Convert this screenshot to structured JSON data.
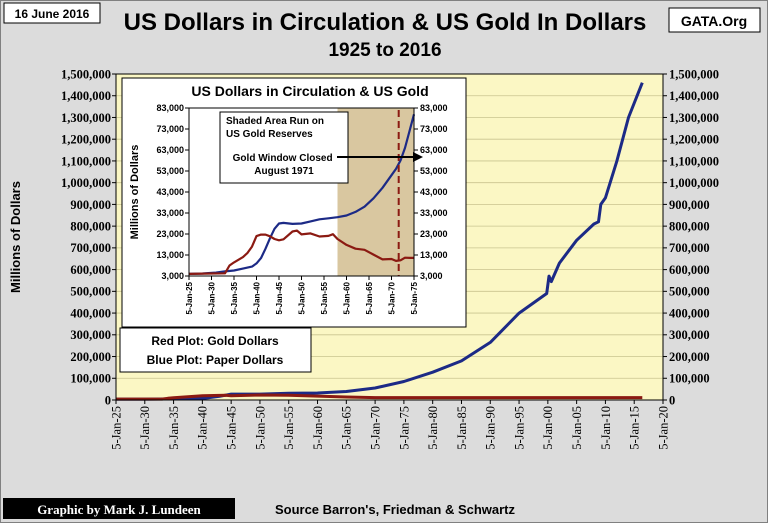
{
  "header": {
    "date_label": "16 June 2016",
    "title": "US Dollars in Circulation & US Gold In Dollars",
    "subtitle": "1925 to 2016",
    "source_badge": "GATA.Org"
  },
  "footer": {
    "credit": "Graphic by Mark J. Lundeen",
    "source": "Source Barron's,  Friedman & Schwartz"
  },
  "legend": {
    "line1": "Red Plot: Gold Dollars",
    "line2": "Blue Plot: Paper Dollars"
  },
  "colors": {
    "plot_bg": "#fbf7c4",
    "inset_shade": "#d9c7a0",
    "paper_dollars": "#1c2a86",
    "gold_dollars": "#8b1a12",
    "window_line": "#8b1a12"
  },
  "chart_data": [
    {
      "type": "line",
      "title": "US Dollars in Circulation & US Gold In Dollars",
      "subtitle": "1925 to 2016",
      "ylabel": "Millions of Dollars",
      "ylim": [
        0,
        1500000
      ],
      "xlim": [
        1925,
        2020
      ],
      "y_ticks": [
        "0",
        "100,000",
        "200,000",
        "300,000",
        "400,000",
        "500,000",
        "600,000",
        "700,000",
        "800,000",
        "900,000",
        "1,000,000",
        "1,100,000",
        "1,200,000",
        "1,300,000",
        "1,400,000",
        "1,500,000"
      ],
      "x_ticks": [
        "5-Jan-25",
        "5-Jan-30",
        "5-Jan-35",
        "5-Jan-40",
        "5-Jan-45",
        "5-Jan-50",
        "5-Jan-55",
        "5-Jan-60",
        "5-Jan-65",
        "5-Jan-70",
        "5-Jan-75",
        "5-Jan-80",
        "5-Jan-85",
        "5-Jan-90",
        "5-Jan-95",
        "5-Jan-00",
        "5-Jan-05",
        "5-Jan-10",
        "5-Jan-15",
        "5-Jan-20"
      ],
      "right_axis": true,
      "grid": "horizontal",
      "series": [
        {
          "name": "Paper Dollars",
          "color": "#1c2a86",
          "x": [
            1925,
            1930,
            1935,
            1940,
            1941,
            1943,
            1945,
            1950,
            1955,
            1960,
            1965,
            1970,
            1975,
            1980,
            1985,
            1990,
            1995,
            1999.8,
            2000.2,
            2000.6,
            2002,
            2005,
            2008,
            2008.8,
            2009.2,
            2010,
            2012,
            2014,
            2016.4
          ],
          "y": [
            4000,
            4000,
            5000,
            8000,
            10000,
            17000,
            27000,
            27000,
            31000,
            32000,
            39000,
            55000,
            85000,
            128000,
            180000,
            265000,
            400000,
            490000,
            570000,
            545000,
            630000,
            735000,
            810000,
            820000,
            900000,
            930000,
            1100000,
            1300000,
            1460000
          ]
        },
        {
          "name": "Gold Dollars",
          "color": "#8b1a12",
          "x": [
            1925,
            1930,
            1933,
            1934,
            1935,
            1940,
            1944,
            1945,
            1950,
            1955,
            1960,
            1965,
            1970,
            1975,
            1980,
            1990,
            2000,
            2010,
            2016.4
          ],
          "y": [
            4000,
            4000,
            4000,
            8000,
            10000,
            20000,
            22000,
            20000,
            23000,
            22000,
            18000,
            14000,
            11000,
            11000,
            11000,
            11000,
            11000,
            11000,
            11000
          ]
        }
      ]
    },
    {
      "type": "line",
      "title": "US Dollars in Circulation & US Gold",
      "ylabel": "Millions of Dollars",
      "ylim": [
        3000,
        83000
      ],
      "xlim": [
        1925,
        1975
      ],
      "y_ticks": [
        "3,000",
        "13,000",
        "23,000",
        "33,000",
        "43,000",
        "53,000",
        "63,000",
        "73,000",
        "83,000"
      ],
      "x_ticks": [
        "5-Jan-25",
        "5-Jan-30",
        "5-Jan-35",
        "5-Jan-40",
        "5-Jan-45",
        "5-Jan-50",
        "5-Jan-55",
        "5-Jan-60",
        "5-Jan-65",
        "5-Jan-70",
        "5-Jan-75"
      ],
      "right_axis": true,
      "shaded_range": [
        1958,
        1975
      ],
      "shaded_label": "Shaded Area Run on US Gold Reserves",
      "marker_year": 1971.6,
      "marker_label": "Gold Window Closed August 1971",
      "series": [
        {
          "name": "Paper Dollars",
          "color": "#1c2a86",
          "x": [
            1925,
            1928,
            1931,
            1933,
            1935,
            1937,
            1939,
            1940,
            1941,
            1942,
            1943,
            1944,
            1945,
            1946,
            1948,
            1950,
            1952,
            1954,
            1956,
            1958,
            1960,
            1962,
            1964,
            1966,
            1968,
            1970,
            1971,
            1972,
            1973,
            1974,
            1975
          ],
          "y": [
            4000,
            4200,
            4600,
            5200,
            5600,
            6500,
            7500,
            9000,
            11500,
            16000,
            21000,
            25500,
            28000,
            28300,
            27800,
            28000,
            29000,
            30000,
            30500,
            31000,
            31800,
            33500,
            36000,
            40000,
            45000,
            51000,
            54000,
            58000,
            64000,
            72000,
            80000
          ]
        },
        {
          "name": "Gold Dollars",
          "color": "#8b1a12",
          "x": [
            1925,
            1930,
            1933,
            1934,
            1935,
            1937,
            1938,
            1939,
            1940,
            1941,
            1942,
            1943,
            1944,
            1945,
            1946,
            1948,
            1949,
            1950,
            1952,
            1954,
            1956,
            1957,
            1958,
            1960,
            1962,
            1964,
            1966,
            1968,
            1970,
            1971,
            1972,
            1973,
            1974,
            1975
          ],
          "y": [
            4000,
            4200,
            4300,
            8000,
            9500,
            12000,
            14000,
            17000,
            22000,
            22700,
            22700,
            21900,
            20600,
            20000,
            20500,
            24200,
            24600,
            22800,
            23300,
            21800,
            22100,
            22900,
            20600,
            17800,
            16000,
            15500,
            13200,
            10900,
            11100,
            10200,
            10500,
            11700,
            11600,
            11600
          ]
        }
      ]
    }
  ]
}
